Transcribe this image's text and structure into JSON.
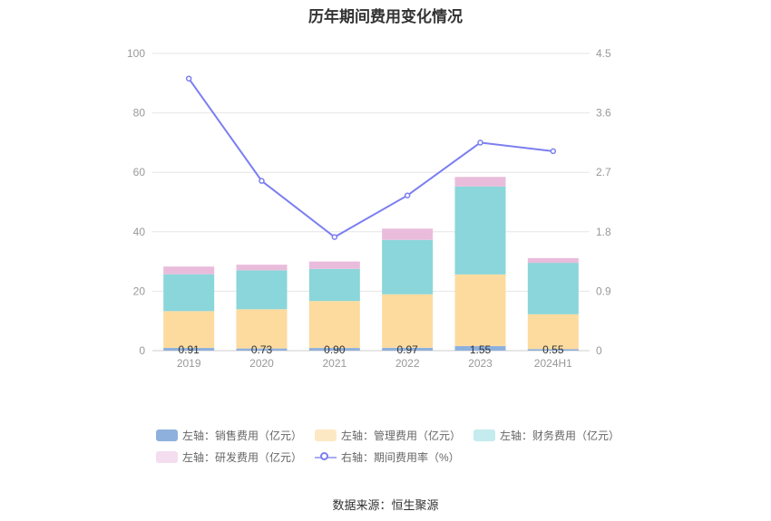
{
  "title": "历年期间费用变化情况",
  "source": "数据来源：恒生聚源",
  "colors": {
    "sales": "#8eb0dc",
    "mgmt": "#fddb9e",
    "finance": "#8ad6da",
    "rd": "#e9bcdc",
    "rate": "#7b7ef0",
    "axis_text": "#999999",
    "grid": "#e6e6e6"
  },
  "legend": {
    "sales": "左轴：销售费用（亿元）",
    "mgmt": "左轴：管理费用（亿元）",
    "finance": "左轴：财务费用（亿元）",
    "rd": "左轴：研发费用（亿元）",
    "rate": "右轴：期间费用率（%）"
  },
  "chart_data": {
    "type": "bar",
    "stacked": true,
    "categories": [
      "2019",
      "2020",
      "2021",
      "2022",
      "2023",
      "2024H1"
    ],
    "left_axis": {
      "ticks": [
        "0",
        "20",
        "40",
        "60",
        "80",
        "100"
      ],
      "ylim": [
        0,
        100
      ]
    },
    "right_axis": {
      "ticks": [
        "0",
        "0.9",
        "1.8",
        "2.7",
        "3.6",
        "4.5"
      ],
      "ylim": [
        0,
        4.5
      ]
    },
    "series": [
      {
        "key": "sales",
        "name": "左轴：销售费用（亿元）",
        "axis": "left",
        "values": [
          0.91,
          0.73,
          0.9,
          0.97,
          1.55,
          0.55
        ]
      },
      {
        "key": "mgmt",
        "name": "左轴：管理费用（亿元）",
        "axis": "left",
        "values": [
          12.4,
          13.2,
          15.8,
          18.0,
          24.1,
          11.7
        ]
      },
      {
        "key": "finance",
        "name": "左轴：财务费用（亿元）",
        "axis": "left",
        "values": [
          12.4,
          13.1,
          10.8,
          18.3,
          29.6,
          17.3
        ]
      },
      {
        "key": "rd",
        "name": "左轴：研发费用（亿元）",
        "axis": "left",
        "values": [
          2.6,
          1.9,
          2.5,
          3.8,
          3.2,
          1.6
        ]
      },
      {
        "key": "rate",
        "name": "右轴：期间费用率（%）",
        "axis": "right",
        "type": "line",
        "values": [
          4.12,
          2.57,
          1.72,
          2.35,
          3.15,
          3.02
        ]
      }
    ],
    "data_labels": [
      "0.91",
      "0.73",
      "0.90",
      "0.97",
      "1.55",
      "0.55"
    ]
  }
}
